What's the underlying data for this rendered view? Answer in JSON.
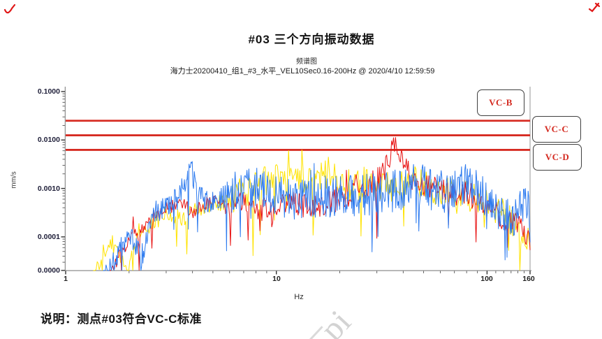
{
  "page": {
    "title": "#03 三个方向振动数据",
    "subtitle_small": "频谱图",
    "subtitle_info": "海力士20200410_组1_#3_水平_VEL10Sec0.16-200Hz @ 2020/4/10 12:59:59",
    "note": "说明：测点#03符合VC-C标准",
    "watermark": "pi"
  },
  "chart_data": {
    "type": "line",
    "title": "#03 三个方向振动数据",
    "subtitle": "频谱图",
    "info_line": "海力士20200410_组1_#3_水平_VEL10Sec0.16-200Hz @ 2020/4/10 12:59:59",
    "xlabel": "Hz",
    "ylabel": "mm/s",
    "x_scale": "log",
    "y_scale": "log",
    "xlim": [
      1,
      160
    ],
    "ylim_labels": [
      "0.0000",
      "0.1000"
    ],
    "x_ticks": [
      "1",
      "10",
      "100",
      "160"
    ],
    "y_ticks": [
      "0.1000",
      "0.0100",
      "0.0010",
      "0.0001",
      "0.0000"
    ],
    "grid": false,
    "legend_position": "right-annotation-boxes",
    "reference_lines": [
      {
        "label": "VC-B",
        "value_mm_s": 0.025,
        "color": "#d62b22"
      },
      {
        "label": "VC-C",
        "value_mm_s": 0.0125,
        "color": "#d62b22"
      },
      {
        "label": "VC-D",
        "value_mm_s": 0.00625,
        "color": "#d62b22"
      }
    ],
    "series": [
      {
        "name": "direction-1-yellow",
        "color": "#ffe300",
        "points": 430,
        "fmin": 1.35,
        "fmax": 160,
        "spread": 0.34,
        "seed": 42,
        "anchors": [
          [
            1.35,
            1.5e-05
          ],
          [
            1.5,
            5e-05
          ],
          [
            1.65,
            8e-05
          ],
          [
            1.8,
            4e-05
          ],
          [
            1.95,
            1.6e-05
          ],
          [
            2.2,
            0.00012
          ],
          [
            2.6,
            0.0002
          ],
          [
            3.0,
            0.00028
          ],
          [
            3.6,
            0.00024
          ],
          [
            4.2,
            0.00035
          ],
          [
            5.0,
            0.00045
          ],
          [
            6.0,
            0.0006
          ],
          [
            7.0,
            0.0008
          ],
          [
            8.0,
            0.0011
          ],
          [
            9.0,
            0.0014
          ],
          [
            10.5,
            0.0018
          ],
          [
            11.5,
            0.0024
          ],
          [
            12.5,
            0.0012
          ],
          [
            14,
            0.0013
          ],
          [
            16,
            0.0018
          ],
          [
            18,
            0.0022
          ],
          [
            20,
            0.0014
          ],
          [
            23,
            0.0011
          ],
          [
            26,
            0.0013
          ],
          [
            30,
            0.001
          ],
          [
            35,
            0.0011
          ],
          [
            40,
            0.0012
          ],
          [
            46,
            0.0014
          ],
          [
            52,
            0.001
          ],
          [
            60,
            0.00085
          ],
          [
            70,
            0.00075
          ],
          [
            80,
            0.0007
          ],
          [
            90,
            0.00065
          ],
          [
            100,
            0.0005
          ],
          [
            115,
            0.00035
          ],
          [
            130,
            0.00022
          ],
          [
            145,
            0.00015
          ],
          [
            160,
            0.0001
          ]
        ]
      },
      {
        "name": "direction-2-red",
        "color": "#e81414",
        "points": 430,
        "fmin": 1.6,
        "fmax": 160,
        "spread": 0.27,
        "seed": 7,
        "clip_max": 0.0115,
        "anchors": [
          [
            1.6,
            1.5e-05
          ],
          [
            1.9,
            6e-05
          ],
          [
            2.2,
            0.00012
          ],
          [
            2.6,
            0.00025
          ],
          [
            3.1,
            0.0004
          ],
          [
            3.6,
            0.0005
          ],
          [
            4.0,
            0.00032
          ],
          [
            4.6,
            0.0005
          ],
          [
            5.2,
            0.00055
          ],
          [
            6.0,
            0.00035
          ],
          [
            7.0,
            0.0006
          ],
          [
            8.0,
            0.00045
          ],
          [
            9.5,
            0.00028
          ],
          [
            11.0,
            0.0005
          ],
          [
            13.0,
            0.00045
          ],
          [
            15.0,
            0.00038
          ],
          [
            17.0,
            0.0005
          ],
          [
            20.0,
            0.00065
          ],
          [
            23.0,
            0.0008
          ],
          [
            26.0,
            0.001
          ],
          [
            29.0,
            0.0013
          ],
          [
            32.0,
            0.002
          ],
          [
            34.0,
            0.0035
          ],
          [
            36.0,
            0.007
          ],
          [
            37.5,
            0.0095
          ],
          [
            39.0,
            0.005
          ],
          [
            41.0,
            0.0025
          ],
          [
            44.0,
            0.0015
          ],
          [
            48.0,
            0.0012
          ],
          [
            54.0,
            0.001
          ],
          [
            60.0,
            0.0009
          ],
          [
            68.0,
            0.0008
          ],
          [
            76.0,
            0.0008
          ],
          [
            85.0,
            0.0007
          ],
          [
            95.0,
            0.0005
          ],
          [
            105.0,
            0.00035
          ],
          [
            120.0,
            0.00025
          ],
          [
            135.0,
            0.00018
          ],
          [
            150.0,
            0.00012
          ],
          [
            160.0,
            8e-05
          ]
        ]
      },
      {
        "name": "direction-3-blue",
        "color": "#2e7bef",
        "points": 650,
        "fmin": 1.5,
        "fmax": 160,
        "spread": 0.44,
        "seed": 1337,
        "anchors": [
          [
            1.5,
            1.5e-05
          ],
          [
            1.8,
            5e-05
          ],
          [
            2.0,
            0.00012
          ],
          [
            2.3,
            4e-05
          ],
          [
            2.6,
            0.0003
          ],
          [
            3.0,
            0.00045
          ],
          [
            3.4,
            0.0006
          ],
          [
            3.75,
            0.0018
          ],
          [
            3.95,
            0.0026
          ],
          [
            4.2,
            0.0009
          ],
          [
            4.6,
            0.0005
          ],
          [
            5.2,
            0.00055
          ],
          [
            6.0,
            0.0008
          ],
          [
            7.0,
            0.001
          ],
          [
            8.0,
            0.0011
          ],
          [
            9.0,
            0.0008
          ],
          [
            10.0,
            0.00075
          ],
          [
            12.0,
            0.0006
          ],
          [
            14.0,
            0.00065
          ],
          [
            17.0,
            0.0007
          ],
          [
            20.0,
            0.00065
          ],
          [
            24.0,
            0.0007
          ],
          [
            28.0,
            0.00075
          ],
          [
            32.0,
            0.0008
          ],
          [
            36.0,
            0.0009
          ],
          [
            40.0,
            0.001
          ],
          [
            44.0,
            0.0012
          ],
          [
            47.0,
            0.0013
          ],
          [
            52.0,
            0.001
          ],
          [
            58.0,
            0.0009
          ],
          [
            65.0,
            0.00085
          ],
          [
            72.0,
            0.0011
          ],
          [
            78.0,
            0.0012
          ],
          [
            85.0,
            0.001
          ],
          [
            92.0,
            0.0009
          ],
          [
            100.0,
            0.0007
          ],
          [
            110.0,
            0.0004
          ],
          [
            120.0,
            0.0003
          ],
          [
            130.0,
            0.00025
          ],
          [
            140.0,
            0.0003
          ],
          [
            150.0,
            0.00045
          ],
          [
            156.0,
            0.0006
          ],
          [
            160.0,
            0.0002
          ]
        ]
      }
    ]
  }
}
